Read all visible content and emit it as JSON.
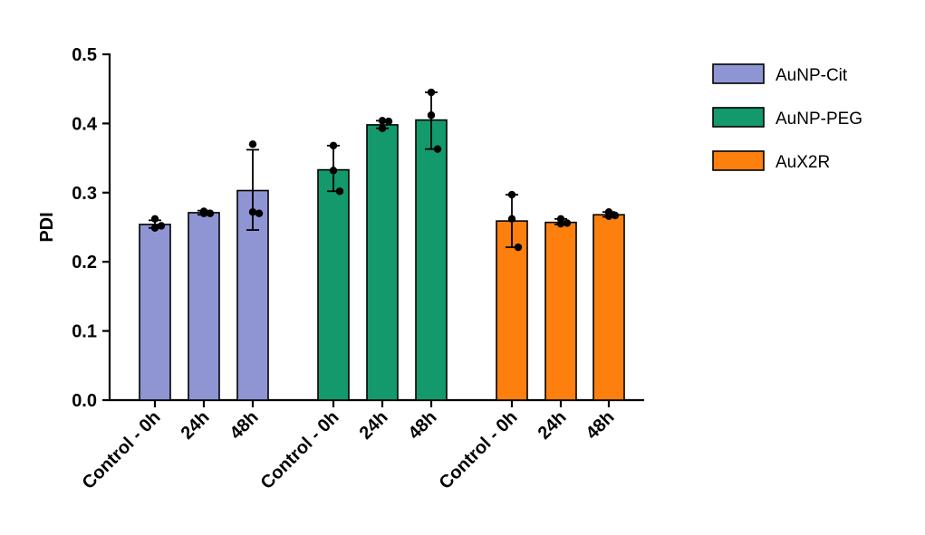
{
  "chart_data": {
    "type": "bar",
    "ylabel": "PDI",
    "xlabel": "",
    "ylim": [
      0,
      0.5
    ],
    "yticks": [
      "0.0",
      "0.1",
      "0.2",
      "0.3",
      "0.4",
      "0.5"
    ],
    "legend_position": "top-right",
    "series": [
      {
        "name": "AuNP-Cit",
        "color": "#8f95d3",
        "categories": [
          "Control - 0h",
          "24h",
          "48h"
        ],
        "values": [
          0.254,
          0.271,
          0.303
        ],
        "err_low": [
          0.249,
          0.268,
          0.246
        ],
        "err_high": [
          0.26,
          0.274,
          0.362
        ],
        "points": [
          [
            0.262,
            0.249,
            0.252
          ],
          [
            0.273,
            0.27,
            0.27
          ],
          [
            0.37,
            0.272,
            0.27
          ]
        ]
      },
      {
        "name": "AuNP-PEG",
        "color": "#13996b",
        "categories": [
          "Control - 0h",
          "24h",
          "48h"
        ],
        "values": [
          0.333,
          0.398,
          0.405
        ],
        "err_low": [
          0.302,
          0.393,
          0.363
        ],
        "err_high": [
          0.368,
          0.404,
          0.445
        ],
        "points": [
          [
            0.368,
            0.332,
            0.302
          ],
          [
            0.404,
            0.393,
            0.403
          ],
          [
            0.445,
            0.412,
            0.363
          ]
        ]
      },
      {
        "name": "AuX2R",
        "color": "#fd7f0d",
        "categories": [
          "Control - 0h",
          "24h",
          "48h"
        ],
        "values": [
          0.259,
          0.257,
          0.268
        ],
        "err_low": [
          0.221,
          0.254,
          0.265
        ],
        "err_high": [
          0.297,
          0.262,
          0.272
        ],
        "points": [
          [
            0.297,
            0.262,
            0.221
          ],
          [
            0.262,
            0.255,
            0.256
          ],
          [
            0.272,
            0.266,
            0.267
          ]
        ]
      }
    ]
  }
}
